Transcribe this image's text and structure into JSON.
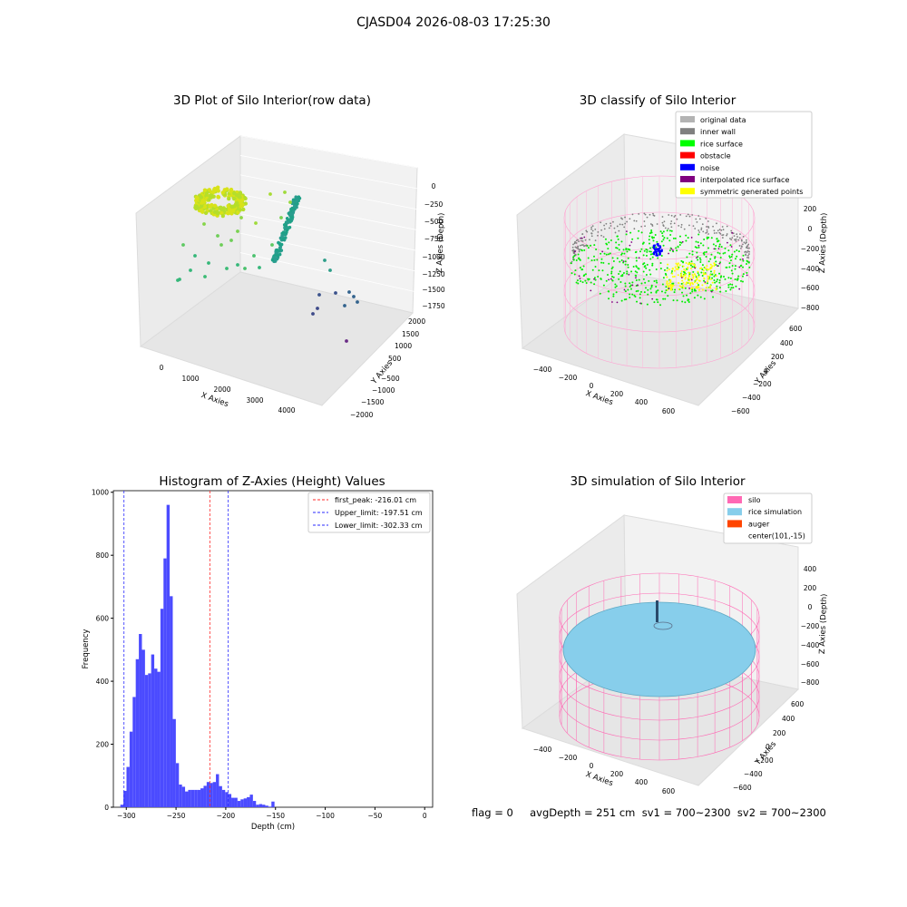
{
  "page": {
    "suptitle": "CJASD04 2026-08-03 17:25:30",
    "footer": "flag = 0     avgDepth = 251 cm  sv1 = 700~2300  sv2 = 700~2300"
  },
  "colors": {
    "histogram": "#4b4bff",
    "peak_line": "#ff2a2a",
    "limit_line": "#2a2aff",
    "silo_wire": "#ff69b4",
    "rice": "#87ceeb",
    "grid_pane": "#f2f2f2"
  },
  "chart_data": [
    {
      "type": "scatter",
      "title": "3D Plot of Silo Interior(row data)",
      "is_3d": true,
      "xlabel": "X Axies",
      "ylabel": "Y Axies",
      "zlabel": "Z Axies (Depth)",
      "x_ticks": [
        "0",
        "1000",
        "2000",
        "3000",
        "4000"
      ],
      "y_ticks": [
        "2000",
        "1500",
        "1000",
        "500",
        "−500",
        "−1000",
        "−1500",
        "−2000"
      ],
      "z_ticks": [
        "0",
        "−250",
        "−500",
        "−750",
        "−1000",
        "−1250",
        "−1500",
        "−1750"
      ],
      "colormap": "viridis"
    },
    {
      "type": "scatter",
      "title": "3D classify of Silo Interior",
      "is_3d": true,
      "xlabel": "X Axies",
      "ylabel": "Y Axies",
      "zlabel": "Z Axies (Depth)",
      "x_ticks": [
        "−400",
        "−200",
        "0",
        "200",
        "400",
        "600"
      ],
      "y_ticks": [
        "600",
        "400",
        "200",
        "0",
        "−200",
        "−400",
        "−600"
      ],
      "z_ticks": [
        "200",
        "0",
        "−200",
        "−400",
        "−600",
        "−800"
      ],
      "z_top_partial": "0",
      "legend_position": "top-right",
      "legend": [
        {
          "label": "original data",
          "color": "#b3b3b3"
        },
        {
          "label": "inner wall",
          "color": "#808080"
        },
        {
          "label": "rice surface",
          "color": "#00ff00"
        },
        {
          "label": "obstacle",
          "color": "#ff0000"
        },
        {
          "label": "noise",
          "color": "#0000ff"
        },
        {
          "label": "interpolated rice surface",
          "color": "#800080"
        },
        {
          "label": "symmetric generated points",
          "color": "#ffff00"
        }
      ]
    },
    {
      "type": "bar",
      "title": "Histogram of Z-Axies (Height) Values",
      "xlabel": "Depth (cm)",
      "ylabel": "Frequency",
      "xlim": [
        -313,
        8
      ],
      "ylim": [
        0,
        1005
      ],
      "x_ticks": [
        -300,
        -250,
        -200,
        -150,
        -100,
        -50,
        0
      ],
      "x_tick_labels": [
        "−300",
        "−250",
        "−200",
        "−150",
        "−100",
        "−50",
        "0"
      ],
      "y_ticks": [
        0,
        200,
        400,
        600,
        800,
        1000
      ],
      "y_tick_labels": [
        "0",
        "200",
        "400",
        "600",
        "800",
        "1000"
      ],
      "bin_start": -306,
      "bin_width": 3.1,
      "values": [
        8,
        52,
        128,
        240,
        350,
        470,
        550,
        500,
        420,
        425,
        485,
        440,
        430,
        630,
        790,
        960,
        670,
        280,
        140,
        72,
        65,
        50,
        55,
        55,
        55,
        55,
        60,
        68,
        80,
        77,
        80,
        105,
        67,
        55,
        48,
        42,
        30,
        30,
        20,
        25,
        28,
        32,
        40,
        20,
        8,
        10,
        8,
        5,
        2,
        18
      ],
      "vlines": [
        {
          "x": -216.01,
          "label": "first_peak: -216.01 cm",
          "color": "#ff2a2a"
        },
        {
          "x": -197.51,
          "label": "Upper_limit: -197.51 cm",
          "color": "#2a2aff"
        },
        {
          "x": -302.33,
          "label": "Lower_limit: -302.33 cm",
          "color": "#2a2aff"
        }
      ],
      "legend_position": "top-right"
    },
    {
      "type": "surface",
      "title": "3D simulation of Silo Interior",
      "is_3d": true,
      "xlabel": "X Axies",
      "ylabel": "Y Axies",
      "zlabel": "Z Axies (Depth)",
      "x_ticks": [
        "−400",
        "−200",
        "0",
        "200",
        "400",
        "600"
      ],
      "y_ticks": [
        "600",
        "400",
        "200",
        "0",
        "−200",
        "−400",
        "−600"
      ],
      "z_ticks": [
        "400",
        "200",
        "0",
        "−200",
        "−400",
        "−600",
        "−800"
      ],
      "legend_position": "top-right",
      "legend": [
        {
          "label": "silo",
          "color": "#ff69b4"
        },
        {
          "label": "rice simulation",
          "color": "#87ceeb"
        },
        {
          "label": "auger",
          "color": "#ff4500"
        },
        {
          "label": "center(101,-15)",
          "color": ""
        }
      ]
    }
  ]
}
